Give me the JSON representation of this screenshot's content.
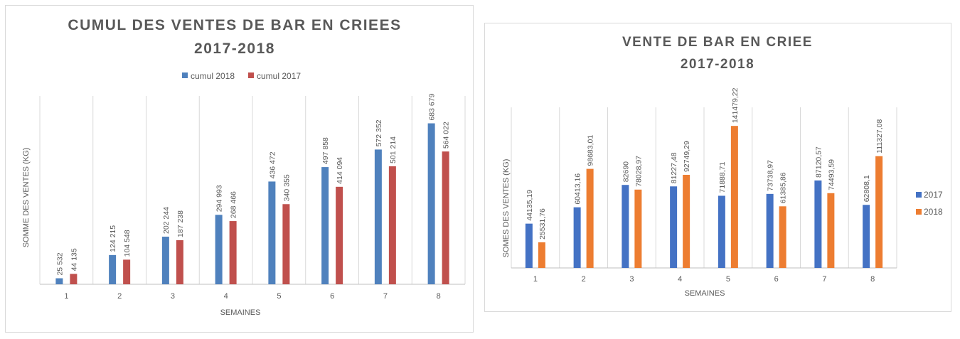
{
  "chart_data": [
    {
      "type": "bar",
      "title": "CUMUL DES VENTES DE BAR EN CRIEES",
      "subtitle": "2017-2018",
      "xlabel": "SEMAINES",
      "ylabel": "SOMME DES VENTES (KG)",
      "categories": [
        "1",
        "2",
        "3",
        "4",
        "5",
        "6",
        "7",
        "8"
      ],
      "series": [
        {
          "name": "cumul 2018",
          "color": "#4F81BD",
          "values": [
            25532,
            124215,
            202244,
            294993,
            436472,
            497858,
            572352,
            683679
          ],
          "labels": [
            "25 532",
            "124 215",
            "202 244",
            "294 993",
            "436 472",
            "497 858",
            "572 352",
            "683 679"
          ]
        },
        {
          "name": "cumul 2017",
          "color": "#C0504D",
          "values": [
            44135,
            104548,
            187238,
            268466,
            340355,
            414094,
            501214,
            564022
          ],
          "labels": [
            "44 135",
            "104 548",
            "187 238",
            "268 466",
            "340 355",
            "414 094",
            "501 214",
            "564 022"
          ]
        }
      ],
      "ylim": [
        0,
        800000
      ],
      "grid": "vertical category separators",
      "legend_position": "top"
    },
    {
      "type": "bar",
      "title": "VENTE DE BAR EN CRIEE",
      "subtitle": "2017-2018",
      "xlabel": "SEMAINES",
      "ylabel": "SOMES DES VENTES (KG)",
      "categories": [
        "1",
        "2",
        "3",
        "4",
        "5",
        "6",
        "7",
        "8"
      ],
      "series": [
        {
          "name": "2017",
          "color": "#4472C4",
          "values": [
            44135.19,
            60413.16,
            82690,
            81227.48,
            71888.71,
            73738.97,
            87120.57,
            62808.1
          ],
          "labels": [
            "44135,19",
            "60413,16",
            "82690",
            "81227,48",
            "71888,71",
            "73738,97",
            "87120,57",
            "62808,1"
          ]
        },
        {
          "name": "2018",
          "color": "#ED7D31",
          "values": [
            25531.76,
            98683.01,
            78028.97,
            92749.29,
            141479.22,
            61385.86,
            74493.59,
            111327.08
          ],
          "labels": [
            "25531,76",
            "98683,01",
            "78028,97",
            "92749,29",
            "141479,22",
            "61385,86",
            "74493,59",
            "111327,08"
          ]
        }
      ],
      "ylim": [
        0,
        160000
      ],
      "grid": "vertical category separators",
      "legend_position": "right"
    }
  ]
}
